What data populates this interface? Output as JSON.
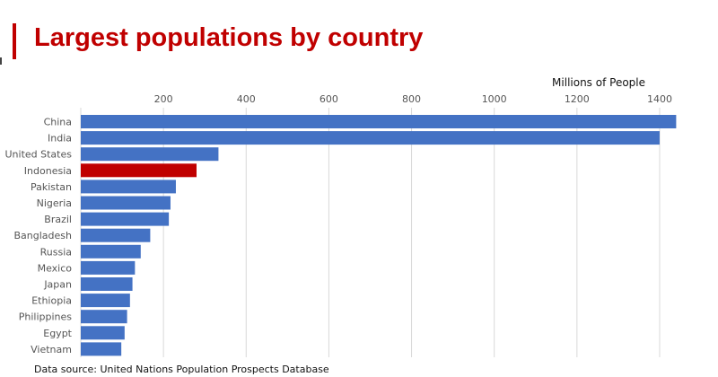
{
  "header": {
    "title": "Largest populations by country",
    "accent_color": "#c00000"
  },
  "footer": {
    "source": "Data source: United Nations Population Prospects Database"
  },
  "chart_data": {
    "type": "bar",
    "orientation": "horizontal",
    "title": "Largest populations by country",
    "axis_unit_label": "Millions of People",
    "categories": [
      "China",
      "India",
      "United States",
      "Indonesia",
      "Pakistan",
      "Nigeria",
      "Brazil",
      "Bangladesh",
      "Russia",
      "Mexico",
      "Japan",
      "Ethiopia",
      "Philippines",
      "Egypt",
      "Vietnam"
    ],
    "values": [
      1440,
      1400,
      333,
      280,
      230,
      217,
      213,
      168,
      145,
      131,
      125,
      119,
      112,
      106,
      98
    ],
    "highlight": "Indonesia",
    "bar_color": "#4472c4",
    "highlight_color": "#c00000",
    "xticks": [
      200,
      400,
      600,
      800,
      1000,
      1200,
      1400
    ],
    "xlim": [
      0,
      1450
    ],
    "x_axis_position": "top",
    "grid": true,
    "legend": "none"
  }
}
